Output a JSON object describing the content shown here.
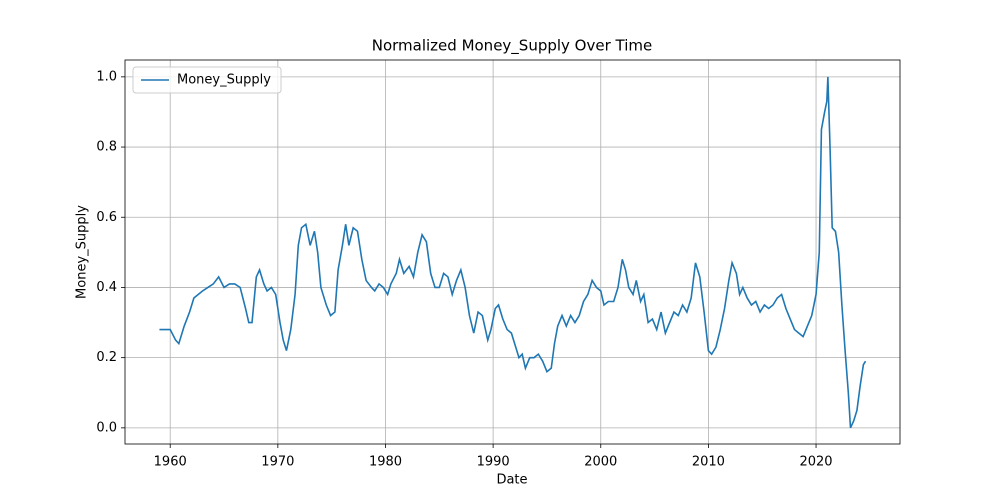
{
  "chart_data": {
    "type": "line",
    "title": "Normalized Money_Supply Over Time",
    "xlabel": "Date",
    "ylabel": "Money_Supply",
    "x": [
      1959.0,
      1960.0,
      1960.5,
      1960.8,
      1961.3,
      1961.8,
      1962.2,
      1962.6,
      1963.0,
      1963.5,
      1964.0,
      1964.5,
      1965.0,
      1965.5,
      1966.0,
      1966.5,
      1967.0,
      1967.3,
      1967.6,
      1968.0,
      1968.3,
      1968.7,
      1969.0,
      1969.4,
      1969.8,
      1970.2,
      1970.5,
      1970.8,
      1971.2,
      1971.6,
      1971.9,
      1972.2,
      1972.6,
      1973.0,
      1973.4,
      1973.7,
      1974.0,
      1974.5,
      1974.9,
      1975.3,
      1975.6,
      1976.0,
      1976.3,
      1976.6,
      1977.0,
      1977.4,
      1977.8,
      1978.2,
      1978.7,
      1979.0,
      1979.4,
      1979.8,
      1980.2,
      1980.5,
      1981.0,
      1981.3,
      1981.7,
      1982.2,
      1982.6,
      1983.0,
      1983.4,
      1983.8,
      1984.2,
      1984.6,
      1985.0,
      1985.4,
      1985.8,
      1986.2,
      1986.6,
      1987.0,
      1987.4,
      1987.8,
      1988.2,
      1988.6,
      1989.0,
      1989.5,
      1989.8,
      1990.2,
      1990.5,
      1990.9,
      1991.3,
      1991.7,
      1992.0,
      1992.4,
      1992.7,
      1993.0,
      1993.4,
      1993.8,
      1994.2,
      1994.6,
      1995.0,
      1995.4,
      1995.7,
      1996.0,
      1996.4,
      1996.8,
      1997.2,
      1997.6,
      1998.0,
      1998.4,
      1998.8,
      1999.2,
      1999.6,
      2000.0,
      2000.3,
      2000.7,
      2001.2,
      2001.6,
      2002.0,
      2002.3,
      2002.6,
      2003.0,
      2003.3,
      2003.7,
      2004.0,
      2004.4,
      2004.8,
      2005.2,
      2005.6,
      2006.0,
      2006.4,
      2006.8,
      2007.2,
      2007.6,
      2008.0,
      2008.4,
      2008.8,
      2009.2,
      2009.6,
      2010.0,
      2010.3,
      2010.7,
      2011.1,
      2011.5,
      2011.9,
      2012.2,
      2012.6,
      2012.9,
      2013.2,
      2013.6,
      2014.0,
      2014.4,
      2014.8,
      2015.2,
      2015.6,
      2016.0,
      2016.4,
      2016.8,
      2017.2,
      2017.6,
      2018.0,
      2018.4,
      2018.8,
      2019.2,
      2019.6,
      2020.0,
      2020.3,
      2020.5,
      2020.8,
      2021.0,
      2021.1,
      2021.3,
      2021.5,
      2021.8,
      2022.1,
      2022.4,
      2022.7,
      2023.0,
      2023.2,
      2023.5,
      2023.8,
      2024.1,
      2024.4,
      2024.6
    ],
    "series": [
      {
        "name": "Money_Supply",
        "color": "#1f77b4",
        "values": [
          0.28,
          0.28,
          0.25,
          0.24,
          0.29,
          0.33,
          0.37,
          0.38,
          0.39,
          0.4,
          0.41,
          0.43,
          0.4,
          0.41,
          0.41,
          0.4,
          0.34,
          0.3,
          0.3,
          0.43,
          0.45,
          0.41,
          0.39,
          0.4,
          0.38,
          0.3,
          0.25,
          0.22,
          0.28,
          0.38,
          0.52,
          0.57,
          0.58,
          0.52,
          0.56,
          0.5,
          0.4,
          0.35,
          0.32,
          0.33,
          0.45,
          0.52,
          0.58,
          0.52,
          0.57,
          0.56,
          0.48,
          0.42,
          0.4,
          0.39,
          0.41,
          0.4,
          0.38,
          0.41,
          0.44,
          0.48,
          0.44,
          0.46,
          0.43,
          0.5,
          0.55,
          0.53,
          0.44,
          0.4,
          0.4,
          0.44,
          0.43,
          0.38,
          0.42,
          0.45,
          0.4,
          0.32,
          0.27,
          0.33,
          0.32,
          0.25,
          0.28,
          0.34,
          0.35,
          0.31,
          0.28,
          0.27,
          0.24,
          0.2,
          0.21,
          0.17,
          0.2,
          0.2,
          0.21,
          0.19,
          0.16,
          0.17,
          0.24,
          0.29,
          0.32,
          0.29,
          0.32,
          0.3,
          0.32,
          0.36,
          0.38,
          0.42,
          0.4,
          0.39,
          0.35,
          0.36,
          0.36,
          0.4,
          0.48,
          0.45,
          0.4,
          0.38,
          0.42,
          0.36,
          0.38,
          0.3,
          0.31,
          0.28,
          0.33,
          0.27,
          0.3,
          0.33,
          0.32,
          0.35,
          0.33,
          0.37,
          0.47,
          0.43,
          0.33,
          0.22,
          0.21,
          0.23,
          0.28,
          0.34,
          0.42,
          0.47,
          0.44,
          0.38,
          0.4,
          0.37,
          0.35,
          0.36,
          0.33,
          0.35,
          0.34,
          0.35,
          0.37,
          0.38,
          0.34,
          0.31,
          0.28,
          0.27,
          0.26,
          0.29,
          0.32,
          0.38,
          0.5,
          0.85,
          0.9,
          0.93,
          1.0,
          0.8,
          0.57,
          0.56,
          0.5,
          0.35,
          0.22,
          0.1,
          0.0,
          0.02,
          0.05,
          0.12,
          0.18,
          0.19
        ]
      }
    ],
    "xlim": [
      1955.8,
      2027.8
    ],
    "ylim": [
      -0.046,
      1.048
    ],
    "xticks": [
      1960,
      1970,
      1980,
      1990,
      2000,
      2010,
      2020
    ],
    "yticks": [
      {
        "value": 0,
        "label": "0.0"
      },
      0.2,
      0.4,
      0.6,
      0.8,
      {
        "value": 1,
        "label": "1.0"
      }
    ],
    "grid": true,
    "legend": "upper left"
  }
}
